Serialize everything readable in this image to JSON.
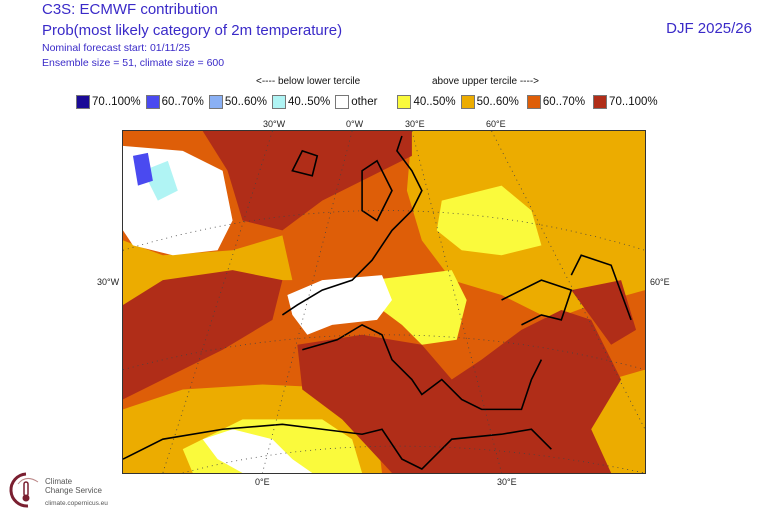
{
  "header": {
    "title": "C3S: ECMWF contribution",
    "subtitle": "Prob(most likely category of 2m temperature)",
    "forecast_start": "Nominal forecast start: 01/11/25",
    "ensemble": "Ensemble size = 51, climate size = 600",
    "season": "DJF 2025/26"
  },
  "legend": {
    "below_label": "<---- below lower tercile",
    "above_label": "above upper tercile ---->",
    "items": [
      {
        "label": "70..100%",
        "color": "#1a0a96"
      },
      {
        "label": "60..70%",
        "color": "#4a4af0"
      },
      {
        "label": "50..60%",
        "color": "#8ab0f4"
      },
      {
        "label": "40..50%",
        "color": "#b0f4f4"
      },
      {
        "label": "other",
        "color": "#ffffff"
      },
      {
        "label": "40..50%",
        "color": "#fafa3c"
      },
      {
        "label": "50..60%",
        "color": "#ecac00"
      },
      {
        "label": "60..70%",
        "color": "#de5e08"
      },
      {
        "label": "70..100%",
        "color": "#b02d18"
      }
    ]
  },
  "axes": {
    "top": [
      "30°W",
      "0°W",
      "30°E",
      "60°E"
    ],
    "left": "30°W",
    "right": "60°E",
    "bottom": [
      "0°E",
      "30°E"
    ]
  },
  "logo": {
    "line1": "Climate",
    "line2": "Change Service",
    "url": "climate.copernicus.eu"
  }
}
